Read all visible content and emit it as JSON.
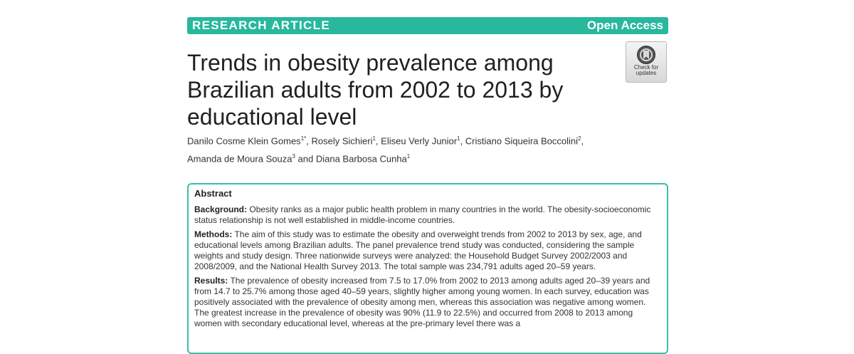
{
  "banner": {
    "type": "RESEARCH ARTICLE",
    "access": "Open Access"
  },
  "title": "Trends in obesity prevalence among Brazilian adults from 2002 to 2013 by educational level",
  "badge": {
    "line1": "Check for",
    "line2": "updates"
  },
  "authors": [
    {
      "name": "Danilo Cosme Klein Gomes",
      "sup": "1*"
    },
    {
      "name": "Rosely Sichieri",
      "sup": "1"
    },
    {
      "name": "Eliseu Verly Junior",
      "sup": "1"
    },
    {
      "name": "Cristiano Siqueira Boccolini",
      "sup": "2"
    },
    {
      "name": "Amanda de Moura Souza",
      "sup": "3"
    },
    {
      "name": "Diana Barbosa Cunha",
      "sup": "1"
    }
  ],
  "author_conj": "and",
  "abstract": {
    "heading": "Abstract",
    "background": {
      "label": "Background:",
      "text": "Obesity ranks as a major public health problem in many countries in the world. The obesity-socioeconomic status relationship is not well established in middle-income countries."
    },
    "methods": {
      "label": "Methods:",
      "text": "The aim of this study was to estimate the obesity and overweight trends from 2002 to 2013 by sex, age, and educational levels among Brazilian adults. The panel prevalence trend study was conducted, considering the sample weights and study design. Three nationwide surveys were analyzed: the Household Budget Survey 2002/2003 and 2008/2009, and the National Health Survey 2013. The total sample was 234,791 adults aged 20–59 years."
    },
    "results": {
      "label": "Results:",
      "text": "The prevalence of obesity increased from 7.5 to 17.0% from 2002 to 2013 among adults aged 20–39 years and from 14.7 to 25.7% among those aged 40–59 years, slightly higher among young women. In each survey, education was positively associated with the prevalence of obesity among men, whereas this association was negative among women. The greatest increase in the prevalence of obesity was 90% (11.9 to 22.5%) and occurred from 2008 to 2013 among women with secondary educational level, whereas at the pre-primary level there was a"
    }
  }
}
